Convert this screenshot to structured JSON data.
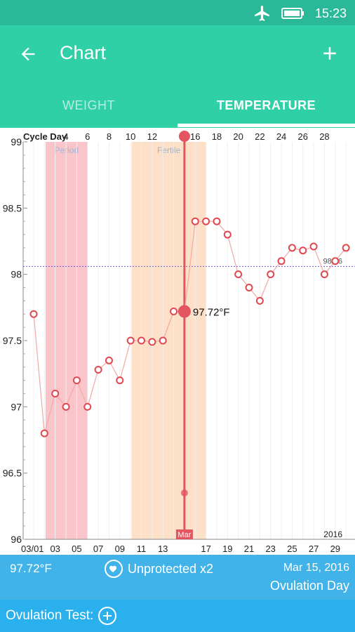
{
  "status_bar": {
    "time": "15:23",
    "icons": [
      "airplane-mode-icon",
      "battery-icon"
    ]
  },
  "app_bar": {
    "title": "Chart",
    "back_icon": "back-arrow-icon",
    "add_icon": "plus-icon"
  },
  "tabs": [
    {
      "label": "WEIGHT",
      "active": false
    },
    {
      "label": "TEMPERATURE",
      "active": true
    }
  ],
  "chart_data": {
    "type": "line",
    "ylim": [
      96,
      99
    ],
    "y_ticks": [
      "96",
      "96.5",
      "97",
      "97.5",
      "98",
      "98.5",
      "99"
    ],
    "cycle_day_label": "Cycle Day",
    "cycle_day_ticks": [
      {
        "day": 4,
        "label": "4"
      },
      {
        "day": 6,
        "label": "6"
      },
      {
        "day": 8,
        "label": "8"
      },
      {
        "day": 10,
        "label": "10"
      },
      {
        "day": 12,
        "label": "12"
      },
      {
        "day": 16,
        "label": "16"
      },
      {
        "day": 18,
        "label": "18"
      },
      {
        "day": 20,
        "label": "20"
      },
      {
        "day": 22,
        "label": "22"
      },
      {
        "day": 24,
        "label": "24"
      },
      {
        "day": 26,
        "label": "26"
      },
      {
        "day": 28,
        "label": "28"
      }
    ],
    "date_ticks": [
      {
        "day": 1,
        "label": "03/01"
      },
      {
        "day": 3,
        "label": "03"
      },
      {
        "day": 5,
        "label": "05"
      },
      {
        "day": 7,
        "label": "07"
      },
      {
        "day": 9,
        "label": "09"
      },
      {
        "day": 11,
        "label": "11"
      },
      {
        "day": 13,
        "label": "13"
      },
      {
        "day": 17,
        "label": "17"
      },
      {
        "day": 19,
        "label": "19"
      },
      {
        "day": 21,
        "label": "21"
      },
      {
        "day": 23,
        "label": "23"
      },
      {
        "day": 25,
        "label": "25"
      },
      {
        "day": 27,
        "label": "27"
      },
      {
        "day": 29,
        "label": "29"
      }
    ],
    "year_label": "2016",
    "selected_month_label": "Mar",
    "selected": {
      "day": 15,
      "value": 97.72,
      "label": "97.72°F"
    },
    "coverline": {
      "value": 98.06,
      "label": "98.06"
    },
    "bands": [
      {
        "name": "Period",
        "start_day": 2.1,
        "end_day": 6
      },
      {
        "name": "Fertile",
        "start_day": 10.1,
        "end_day": 17
      }
    ],
    "series": [
      {
        "points": [
          [
            1,
            97.7
          ],
          [
            2,
            96.8
          ],
          [
            3,
            97.1
          ],
          [
            4,
            97.0
          ],
          [
            5,
            97.2
          ],
          [
            6,
            97.0
          ],
          [
            7,
            97.28
          ],
          [
            8,
            97.35
          ],
          [
            9,
            97.2
          ],
          [
            10,
            97.5
          ],
          [
            11,
            97.5
          ],
          [
            12,
            97.49
          ],
          [
            13,
            97.5
          ],
          [
            14,
            97.72
          ],
          [
            15,
            97.72
          ],
          [
            16,
            98.4
          ],
          [
            17,
            98.4
          ],
          [
            18,
            98.4
          ],
          [
            19,
            98.3
          ],
          [
            20,
            98.0
          ],
          [
            21,
            97.9
          ],
          [
            22,
            97.8
          ],
          [
            23,
            98.0
          ],
          [
            24,
            98.1
          ],
          [
            25,
            98.2
          ],
          [
            26,
            98.18
          ],
          [
            27,
            98.21
          ],
          [
            28,
            98.0
          ],
          [
            29,
            98.1
          ],
          [
            30,
            98.2
          ]
        ]
      }
    ],
    "colors": {
      "line": "#f1a8a8",
      "point": "#e0484f",
      "selected": "#e25561",
      "period": "#f9c5cb",
      "fertile": "#fde0c8",
      "coverline": "#6b5bd6"
    }
  },
  "summary": {
    "temperature": "97.72°F",
    "intercourse": "Unprotected x2",
    "date": "Mar 15, 2016",
    "day_type": "Ovulation Day"
  },
  "ovulation_test": {
    "label": "Ovulation Test:"
  }
}
